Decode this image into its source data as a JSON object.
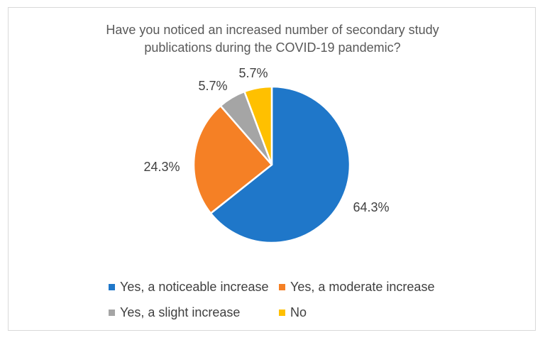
{
  "chart_data": {
    "type": "pie",
    "title_lines": [
      "Have you noticed an increased number of secondary study",
      "publications during the COVID-19 pandemic?"
    ],
    "slices": [
      {
        "name": "Yes, a noticeable increase",
        "value": 64.3,
        "label": "64.3%",
        "color": "#1f77c9"
      },
      {
        "name": "Yes, a moderate increase",
        "value": 24.3,
        "label": "24.3%",
        "color": "#f58025"
      },
      {
        "name": "Yes, a slight increase",
        "value": 5.7,
        "label": "5.7%",
        "color": "#a5a5a5"
      },
      {
        "name": "No",
        "value": 5.7,
        "label": "5.7%",
        "color": "#ffc000"
      }
    ],
    "legend_placement": "bottom",
    "start_angle": "12 o'clock",
    "direction": "clockwise"
  }
}
